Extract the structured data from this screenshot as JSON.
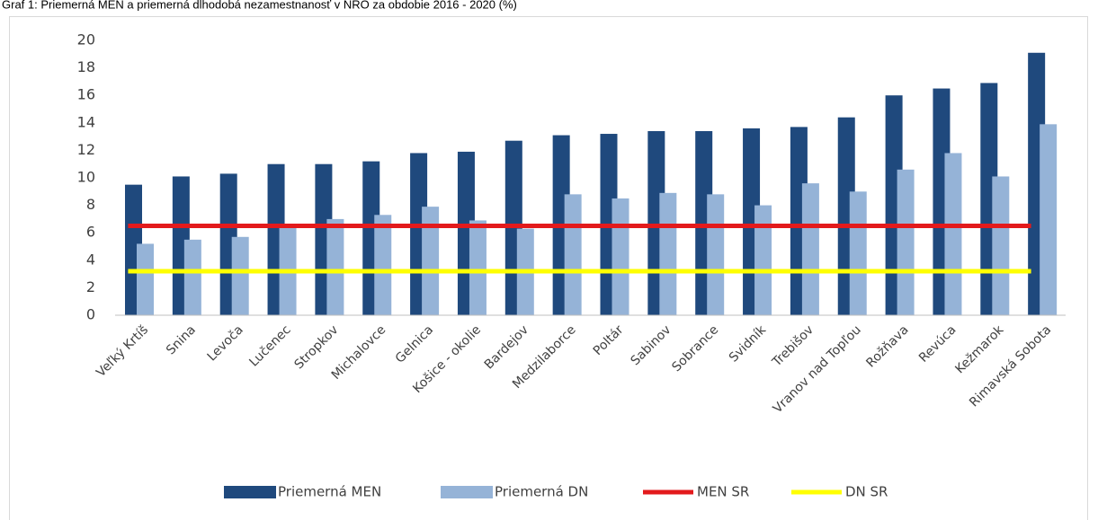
{
  "chart_data": {
    "type": "bar",
    "title": "Graf 1: Priemerná MEN a priemerná dlhodobá nezamestnanosť v NRO za obdobie 2016 - 2020 (%)",
    "categories": [
      "Veľký Krtíš",
      "Snina",
      "Levoča",
      "Lučenec",
      "Stropkov",
      "Michalovce",
      "Gelnica",
      "Košice - okolie",
      "Bardejov",
      "Medzilaborce",
      "Poltár",
      "Sabinov",
      "Sobrance",
      "Svidník",
      "Trebišov",
      "Vranov nad Topľou",
      "Rožňava",
      "Revúca",
      "Kežmarok",
      "Rimavská Sobota"
    ],
    "series": [
      {
        "name": "Priemerná MEN",
        "type": "bar",
        "color": "#1f497d",
        "values": [
          9.5,
          10.1,
          10.3,
          11.0,
          11.0,
          11.2,
          11.8,
          11.9,
          12.7,
          13.1,
          13.2,
          13.4,
          13.4,
          13.6,
          13.7,
          14.4,
          16.0,
          16.5,
          16.9,
          19.1
        ]
      },
      {
        "name": "Priemerná DN",
        "type": "bar",
        "color": "#95b3d7",
        "values": [
          5.2,
          5.5,
          5.7,
          6.6,
          7.0,
          7.3,
          7.9,
          6.9,
          6.3,
          8.8,
          8.5,
          8.9,
          8.8,
          8.0,
          9.6,
          9.0,
          10.6,
          11.8,
          10.1,
          13.9
        ]
      },
      {
        "name": "MEN SR",
        "type": "line",
        "color": "#e31a1c",
        "values": [
          6.5,
          6.5,
          6.5,
          6.5,
          6.5,
          6.5,
          6.5,
          6.5,
          6.5,
          6.5,
          6.5,
          6.5,
          6.5,
          6.5,
          6.5,
          6.5,
          6.5,
          6.5,
          6.5,
          6.5
        ]
      },
      {
        "name": "DN SR",
        "type": "line",
        "color": "#ffff00",
        "values": [
          3.2,
          3.2,
          3.2,
          3.2,
          3.2,
          3.2,
          3.2,
          3.2,
          3.2,
          3.2,
          3.2,
          3.2,
          3.2,
          3.2,
          3.2,
          3.2,
          3.2,
          3.2,
          3.2,
          3.2
        ]
      }
    ],
    "ylim": [
      0,
      20
    ],
    "yticks": [
      0,
      2,
      4,
      6,
      8,
      10,
      12,
      14,
      16,
      18,
      20
    ],
    "grid": false,
    "legend": "bottom"
  }
}
